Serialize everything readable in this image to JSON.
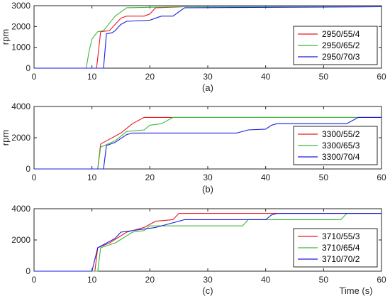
{
  "chart_data": [
    {
      "type": "line",
      "panel_label": "(a)",
      "ylabel": "rpm",
      "xlabel": "",
      "xlim": [
        0,
        60
      ],
      "ylim": [
        0,
        3000
      ],
      "xticks": [
        0,
        10,
        20,
        30,
        40,
        50,
        60
      ],
      "yticks": [
        0,
        1000,
        2000,
        3000
      ],
      "legend_position": "right",
      "series": [
        {
          "name": "2950/55/4",
          "color": "#e8191e",
          "points": [
            [
              0,
              0
            ],
            [
              10.8,
              0
            ],
            [
              11.5,
              1750
            ],
            [
              13,
              1800
            ],
            [
              15,
              2400
            ],
            [
              16,
              2500
            ],
            [
              19,
              2500
            ],
            [
              20,
              2600
            ],
            [
              21,
              2900
            ],
            [
              26,
              2950
            ],
            [
              60,
              2950
            ]
          ]
        },
        {
          "name": "2950/65/2",
          "color": "#3cb83c",
          "points": [
            [
              0,
              0
            ],
            [
              9,
              0
            ],
            [
              9.5,
              800
            ],
            [
              10,
              1400
            ],
            [
              11,
              1750
            ],
            [
              12,
              1800
            ],
            [
              14,
              2500
            ],
            [
              16,
              2900
            ],
            [
              25,
              2950
            ],
            [
              60,
              2950
            ]
          ]
        },
        {
          "name": "2950/70/3",
          "color": "#1a1ae0",
          "points": [
            [
              0,
              0
            ],
            [
              12,
              0
            ],
            [
              12.5,
              1650
            ],
            [
              13.5,
              1700
            ],
            [
              14,
              1800
            ],
            [
              15,
              2100
            ],
            [
              16,
              2250
            ],
            [
              20,
              2300
            ],
            [
              22,
              2500
            ],
            [
              24,
              2500
            ],
            [
              26,
              2900
            ],
            [
              60,
              2950
            ]
          ]
        }
      ]
    },
    {
      "type": "line",
      "panel_label": "(b)",
      "ylabel": "rpm",
      "xlabel": "",
      "xlim": [
        0,
        60
      ],
      "ylim": [
        0,
        4000
      ],
      "xticks": [
        0,
        10,
        20,
        30,
        40,
        50,
        60
      ],
      "yticks": [
        0,
        2000,
        4000
      ],
      "legend_position": "right",
      "series": [
        {
          "name": "3300/55/2",
          "color": "#e8191e",
          "points": [
            [
              0,
              0
            ],
            [
              11,
              0
            ],
            [
              11.5,
              1600
            ],
            [
              13,
              1900
            ],
            [
              15,
              2300
            ],
            [
              17,
              2900
            ],
            [
              19,
              3300
            ],
            [
              60,
              3300
            ]
          ]
        },
        {
          "name": "3300/65/3",
          "color": "#3cb83c",
          "points": [
            [
              0,
              0
            ],
            [
              11,
              0
            ],
            [
              11.5,
              1400
            ],
            [
              14,
              1800
            ],
            [
              16,
              2400
            ],
            [
              19,
              2500
            ],
            [
              20,
              2800
            ],
            [
              22,
              2900
            ],
            [
              24,
              3300
            ],
            [
              60,
              3300
            ]
          ]
        },
        {
          "name": "3300/70/4",
          "color": "#1a1ae0",
          "points": [
            [
              0,
              0
            ],
            [
              12,
              0
            ],
            [
              12.5,
              1500
            ],
            [
              14,
              1700
            ],
            [
              16,
              2200
            ],
            [
              17,
              2300
            ],
            [
              35,
              2300
            ],
            [
              37,
              2500
            ],
            [
              40,
              2550
            ],
            [
              41,
              2800
            ],
            [
              42,
              2900
            ],
            [
              54,
              2900
            ],
            [
              56,
              3300
            ],
            [
              60,
              3300
            ]
          ]
        }
      ]
    },
    {
      "type": "line",
      "panel_label": "(c)",
      "ylabel": "",
      "xlabel": "Time (s)",
      "xlim": [
        0,
        60
      ],
      "ylim": [
        0,
        4000
      ],
      "xticks": [
        0,
        10,
        20,
        30,
        40,
        50,
        60
      ],
      "yticks": [
        0,
        2000,
        4000
      ],
      "legend_position": "right",
      "series": [
        {
          "name": "3710/55/3",
          "color": "#e8191e",
          "points": [
            [
              0,
              0
            ],
            [
              10.5,
              0
            ],
            [
              11,
              1500
            ],
            [
              13,
              1800
            ],
            [
              16,
              2500
            ],
            [
              19,
              2800
            ],
            [
              21,
              3200
            ],
            [
              24,
              3300
            ],
            [
              25,
              3700
            ],
            [
              60,
              3700
            ]
          ]
        },
        {
          "name": "3710/65/4",
          "color": "#3cb83c",
          "points": [
            [
              0,
              0
            ],
            [
              11,
              0
            ],
            [
              11.5,
              1500
            ],
            [
              14,
              1800
            ],
            [
              17,
              2500
            ],
            [
              19,
              2600
            ],
            [
              20,
              2900
            ],
            [
              36,
              2900
            ],
            [
              37,
              3300
            ],
            [
              53,
              3300
            ],
            [
              54,
              3700
            ],
            [
              60,
              3700
            ]
          ]
        },
        {
          "name": "3710/70/2",
          "color": "#1a1ae0",
          "points": [
            [
              0,
              0
            ],
            [
              10,
              0
            ],
            [
              11,
              1500
            ],
            [
              12,
              1700
            ],
            [
              14,
              2100
            ],
            [
              15,
              2500
            ],
            [
              21,
              2800
            ],
            [
              23,
              3000
            ],
            [
              26,
              3300
            ],
            [
              40,
              3300
            ],
            [
              41,
              3600
            ],
            [
              42,
              3700
            ],
            [
              60,
              3700
            ]
          ]
        }
      ]
    }
  ]
}
